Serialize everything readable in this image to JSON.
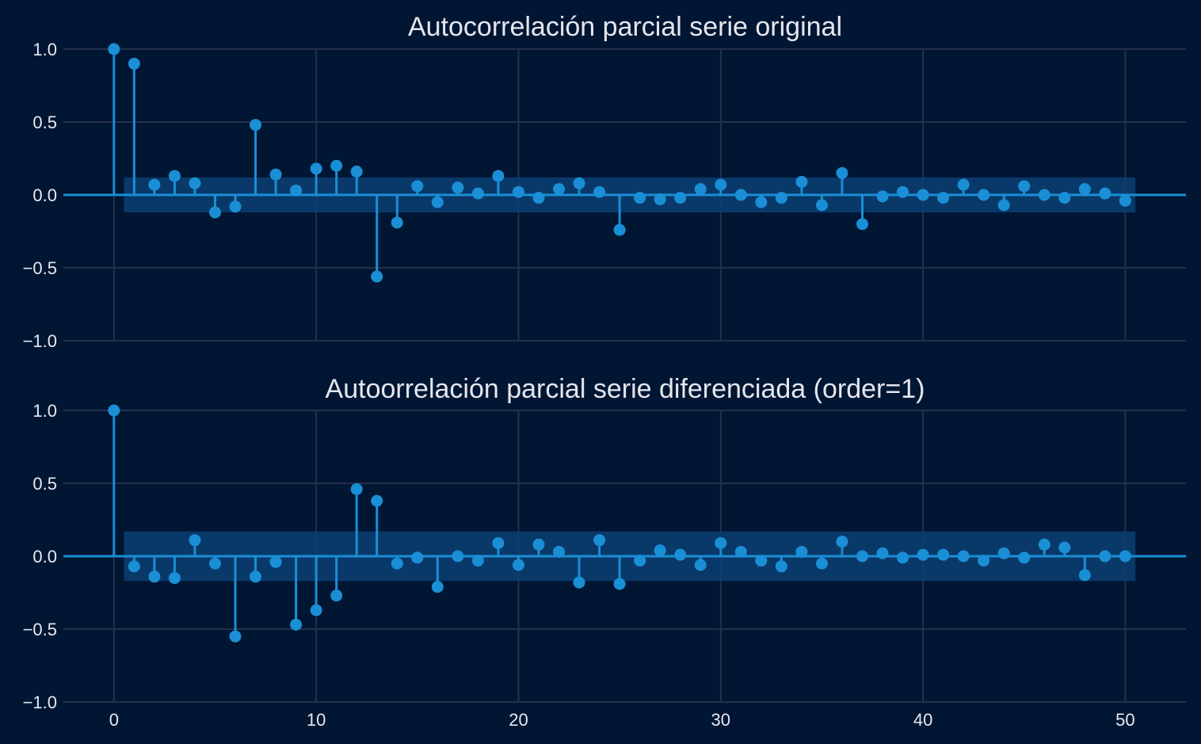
{
  "chart_data": [
    {
      "type": "stem",
      "title": "Autocorrelación parcial serie original",
      "xlabel": "",
      "ylabel": "",
      "xlim": [
        -2.5,
        53
      ],
      "ylim": [
        -1.0,
        1.0
      ],
      "x_ticks": [
        0,
        10,
        20,
        30,
        40,
        50
      ],
      "y_ticks": [
        1.0,
        0.5,
        0.0,
        -0.5,
        -1.0
      ],
      "y_tick_labels": [
        "1.0",
        "0.5",
        "0.0",
        "−0.5",
        "−1.0"
      ],
      "show_x_tick_labels": false,
      "grid": true,
      "confidence_interval": {
        "x_range": [
          0.5,
          50.5
        ],
        "y_range": [
          -0.12,
          0.12
        ]
      },
      "lags": [
        0,
        1,
        2,
        3,
        4,
        5,
        6,
        7,
        8,
        9,
        10,
        11,
        12,
        13,
        14,
        15,
        16,
        17,
        18,
        19,
        20,
        21,
        22,
        23,
        24,
        25,
        26,
        27,
        28,
        29,
        30,
        31,
        32,
        33,
        34,
        35,
        36,
        37,
        38,
        39,
        40,
        41,
        42,
        43,
        44,
        45,
        46,
        47,
        48,
        49,
        50
      ],
      "values": [
        1.0,
        0.9,
        0.07,
        0.13,
        0.08,
        -0.12,
        -0.08,
        0.48,
        0.14,
        0.03,
        0.18,
        0.2,
        0.16,
        -0.56,
        -0.19,
        0.06,
        -0.05,
        0.05,
        0.01,
        0.13,
        0.02,
        -0.02,
        0.04,
        0.08,
        0.02,
        -0.24,
        -0.02,
        -0.03,
        -0.02,
        0.04,
        0.07,
        0.0,
        -0.05,
        -0.02,
        0.09,
        -0.07,
        0.15,
        -0.2,
        -0.01,
        0.02,
        0.0,
        -0.02,
        0.07,
        0.0,
        -0.07,
        0.06,
        0.0,
        -0.02,
        0.04,
        0.01,
        -0.04
      ]
    },
    {
      "type": "stem",
      "title": "Autoorrelación parcial serie diferenciada (order=1)",
      "xlabel": "",
      "ylabel": "",
      "xlim": [
        -2.5,
        53
      ],
      "ylim": [
        -1.0,
        1.0
      ],
      "x_ticks": [
        0,
        10,
        20,
        30,
        40,
        50
      ],
      "x_tick_labels": [
        "0",
        "10",
        "20",
        "30",
        "40",
        "50"
      ],
      "y_ticks": [
        1.0,
        0.5,
        0.0,
        -0.5,
        -1.0
      ],
      "y_tick_labels": [
        "1.0",
        "0.5",
        "0.0",
        "−0.5",
        "−1.0"
      ],
      "show_x_tick_labels": true,
      "grid": true,
      "confidence_interval": {
        "x_range": [
          0.5,
          50.5
        ],
        "y_range": [
          -0.17,
          0.17
        ]
      },
      "lags": [
        0,
        1,
        2,
        3,
        4,
        5,
        6,
        7,
        8,
        9,
        10,
        11,
        12,
        13,
        14,
        15,
        16,
        17,
        18,
        19,
        20,
        21,
        22,
        23,
        24,
        25,
        26,
        27,
        28,
        29,
        30,
        31,
        32,
        33,
        34,
        35,
        36,
        37,
        38,
        39,
        40,
        41,
        42,
        43,
        44,
        45,
        46,
        47,
        48,
        49,
        50
      ],
      "values": [
        1.0,
        -0.07,
        -0.14,
        -0.15,
        0.11,
        -0.05,
        -0.55,
        -0.14,
        -0.04,
        -0.47,
        -0.37,
        -0.27,
        0.46,
        0.38,
        -0.05,
        -0.01,
        -0.21,
        0.0,
        -0.03,
        0.09,
        -0.06,
        0.08,
        0.03,
        -0.18,
        0.11,
        -0.19,
        -0.03,
        0.04,
        0.01,
        -0.06,
        0.09,
        0.03,
        -0.03,
        -0.07,
        0.03,
        -0.05,
        0.1,
        0.0,
        0.02,
        -0.01,
        0.01,
        0.01,
        0.0,
        -0.03,
        0.02,
        -0.01,
        0.08,
        0.06,
        -0.13,
        0.0,
        0.0
      ]
    }
  ],
  "colors": {
    "background": "#001633",
    "series": "#1a8fd6",
    "confidence_band": "#0a3f73",
    "grid": "#26304d",
    "text": "#e6e6ee"
  }
}
